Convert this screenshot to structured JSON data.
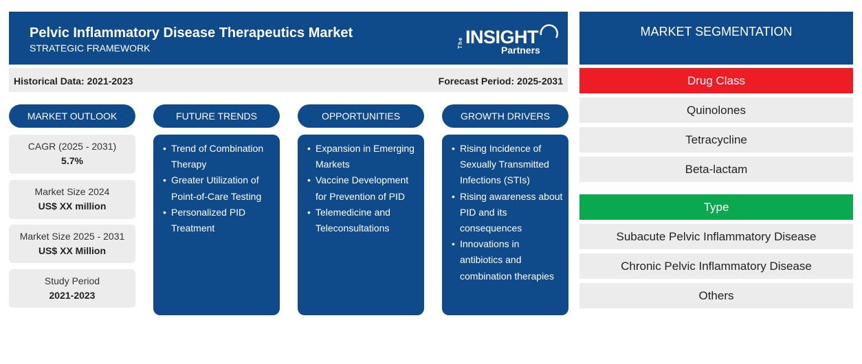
{
  "header": {
    "title": "Pelvic Inflammatory Disease Therapeutics Market",
    "subtitle": "STRATEGIC FRAMEWORK",
    "logo": {
      "the": "The",
      "brand": "INSIGHT",
      "partners": "Partners"
    }
  },
  "infobar": {
    "historical": "Historical Data: 2021-2023",
    "forecast": "Forecast Period: 2025-2031"
  },
  "columns": {
    "outlook": "MARKET OUTLOOK",
    "trends": "FUTURE TRENDS",
    "opportunities": "OPPORTUNITIES",
    "drivers": "GROWTH DRIVERS"
  },
  "outlook": [
    {
      "label": "CAGR (2025 - 2031)",
      "value": "5.7%"
    },
    {
      "label": "Market Size 2024",
      "value": "US$ XX million"
    },
    {
      "label": "Market Size 2025 - 2031",
      "value": "US$ XX Million"
    },
    {
      "label": "Study Period",
      "value": "2021-2023"
    }
  ],
  "trends": [
    "Trend of Combination Therapy",
    "Greater Utilization of Point-of-Care Testing",
    "Personalized PID Treatment"
  ],
  "opportunities": [
    "Expansion in Emerging Markets",
    "Vaccine Development for Prevention of PID",
    "Telemedicine and Teleconsultations"
  ],
  "drivers": [
    "Rising Incidence of Sexually Transmitted Infections (STIs)",
    "Rising awareness about PID and its consequences",
    "Innovations in antibiotics and combination therapies"
  ],
  "segmentation": {
    "title": "MARKET SEGMENTATION",
    "drug_class": {
      "title": "Drug Class",
      "color": "#ee1c25",
      "items": [
        "Quinolones",
        "Tetracycline",
        "Beta-lactam"
      ]
    },
    "type": {
      "title": "Type",
      "color": "#0aa84f",
      "items": [
        "Subacute Pelvic Inflammatory Disease",
        "Chronic Pelvic Inflammatory Disease",
        "Others"
      ]
    }
  },
  "colors": {
    "primary": "#0f4a8a",
    "panel_bg": "#ececec"
  }
}
